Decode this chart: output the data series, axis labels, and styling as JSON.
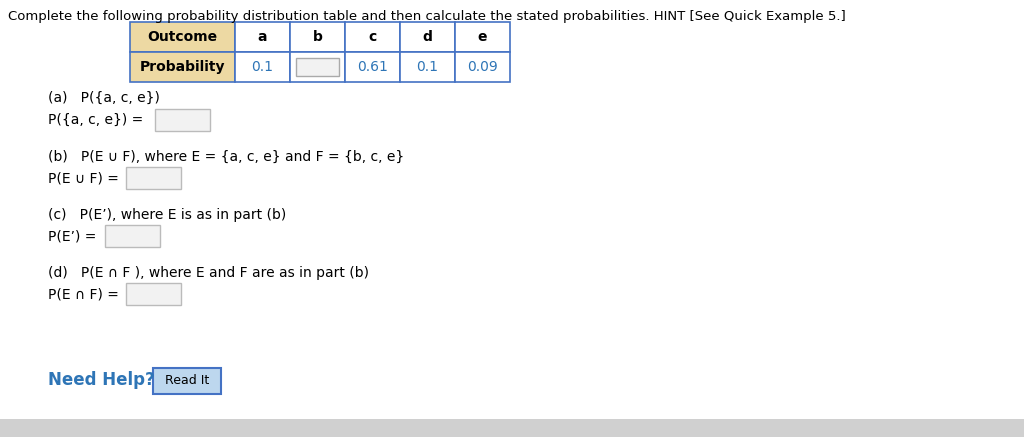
{
  "title": "Complete the following probability distribution table and then calculate the stated probabilities. HINT [See Quick Example 5.]",
  "table": {
    "col_headers": [
      "Outcome",
      "a",
      "b",
      "c",
      "d",
      "e"
    ],
    "probabilities": [
      "0.1",
      "",
      "0.61",
      "0.1",
      "0.09"
    ],
    "header_bg": "#EDD9A3",
    "cell_bg": "#FFFFFF",
    "border_color": "#4472C4",
    "prob_color": "#2E75B6",
    "empty_box_bg": "#F2F2F2",
    "empty_box_border": "#AAAAAA"
  },
  "parts": [
    {
      "q_label": "(a)",
      "q_text": "   P({a, c, e})",
      "ans_label": "P({a, c, e}) = "
    },
    {
      "q_label": "(b)",
      "q_text": "   P(E ∪ F), where E = {a, c, e} and F = {b, c, e}",
      "ans_label": "P(E ∪ F) = "
    },
    {
      "q_label": "(c)",
      "q_text": "   P(E’), where E is as in part (b)",
      "ans_label": "P(E’) = "
    },
    {
      "q_label": "(d)",
      "q_text": "   P(E ∩ F ), where E and F are as in part (b)",
      "ans_label": "P(E ∩ F) = "
    }
  ],
  "need_help_color": "#2E75B6",
  "read_it_btn_face": "#BDD7EE",
  "read_it_btn_edge": "#4472C4",
  "bg_color": "#FFFFFF",
  "input_box_face": "#F2F2F2",
  "input_box_edge": "#BBBBBB"
}
